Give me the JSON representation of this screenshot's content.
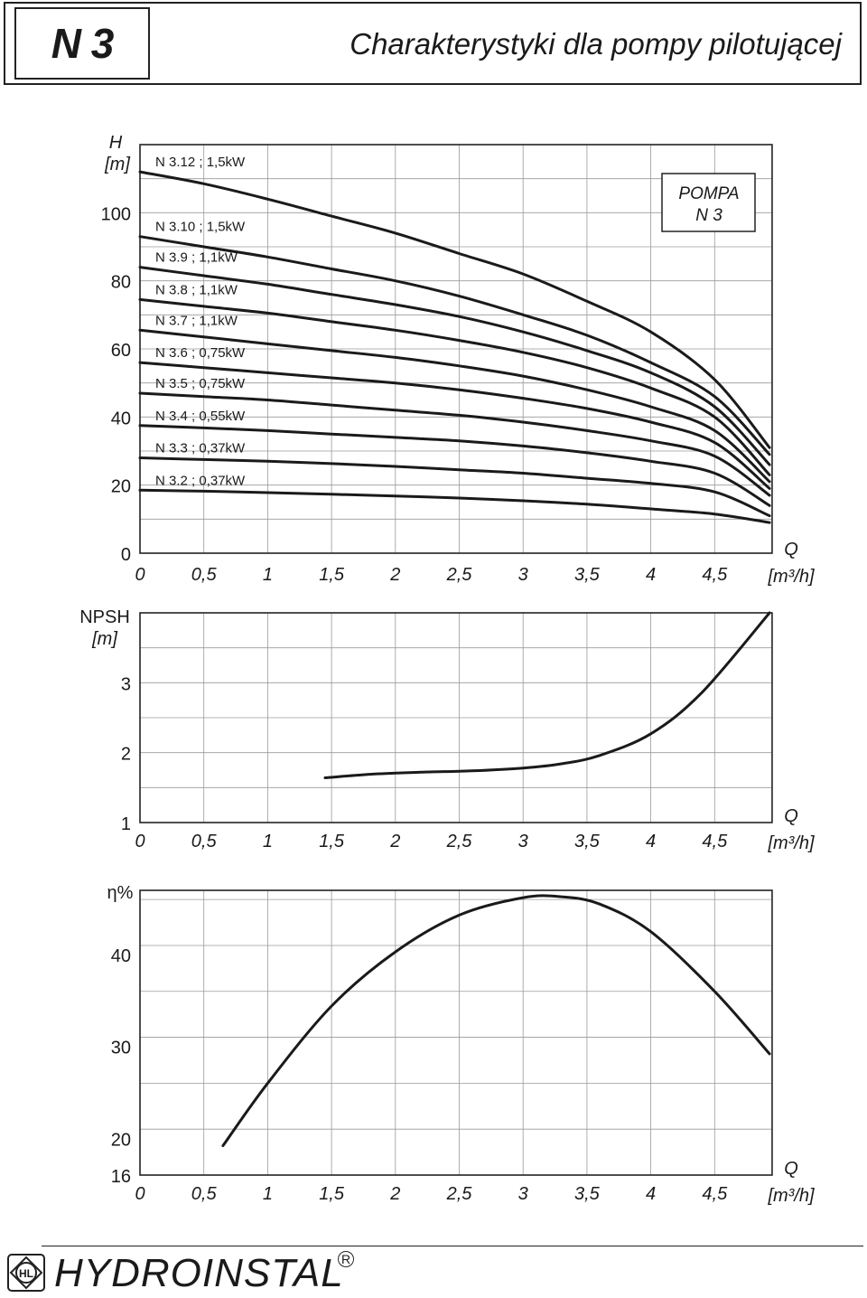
{
  "header": {
    "code": "N 3",
    "title": "Charakterystyki dla pompy pilotującej"
  },
  "x_axis": {
    "ticks": [
      "0",
      "0,5",
      "1",
      "1,5",
      "2",
      "2,5",
      "3",
      "3,5",
      "4",
      "4,5"
    ],
    "label_q": "Q",
    "label_unit": "[m³/h]"
  },
  "chart_data": [
    {
      "type": "line",
      "name": "head-curves",
      "ylabel": "H",
      "yunit": "[m]",
      "xlim": [
        0,
        4.95
      ],
      "ylim": [
        0,
        120
      ],
      "yticks": [
        "0",
        "20",
        "40",
        "60",
        "80",
        "100"
      ],
      "legend_box": [
        "POMPA",
        "N 3"
      ],
      "series": [
        {
          "name": "N 3.12 ; 1,5kW",
          "points": [
            [
              0,
              112
            ],
            [
              0.5,
              108.5
            ],
            [
              1,
              104
            ],
            [
              1.5,
              99
            ],
            [
              2,
              94
            ],
            [
              2.5,
              88
            ],
            [
              3,
              82
            ],
            [
              3.5,
              74
            ],
            [
              4,
              65
            ],
            [
              4.5,
              51
            ],
            [
              4.93,
              31
            ]
          ]
        },
        {
          "name": "N 3.10 ; 1,5kW",
          "points": [
            [
              0,
              93
            ],
            [
              0.5,
              90
            ],
            [
              1,
              87
            ],
            [
              1.5,
              83.5
            ],
            [
              2,
              80
            ],
            [
              2.5,
              75.5
            ],
            [
              3,
              70
            ],
            [
              3.5,
              64
            ],
            [
              4,
              56
            ],
            [
              4.5,
              46
            ],
            [
              4.93,
              29
            ]
          ]
        },
        {
          "name": "N 3.9 ; 1,1kW",
          "points": [
            [
              0,
              84
            ],
            [
              0.5,
              81.5
            ],
            [
              1,
              79
            ],
            [
              1.5,
              76
            ],
            [
              2,
              73
            ],
            [
              2.5,
              69.5
            ],
            [
              3,
              65
            ],
            [
              3.5,
              59.5
            ],
            [
              4,
              53
            ],
            [
              4.5,
              43
            ],
            [
              4.93,
              26
            ]
          ]
        },
        {
          "name": "N 3.8 ; 1,1kW",
          "points": [
            [
              0,
              74.5
            ],
            [
              0.5,
              72.5
            ],
            [
              1,
              70.5
            ],
            [
              1.5,
              68
            ],
            [
              2,
              65.5
            ],
            [
              2.5,
              62.5
            ],
            [
              3,
              59
            ],
            [
              3.5,
              54.5
            ],
            [
              4,
              48.5
            ],
            [
              4.5,
              40
            ],
            [
              4.93,
              23
            ]
          ]
        },
        {
          "name": "N 3.7 ; 1,1kW",
          "points": [
            [
              0,
              65.5
            ],
            [
              0.5,
              63.5
            ],
            [
              1,
              61.5
            ],
            [
              1.5,
              59.5
            ],
            [
              2,
              57.5
            ],
            [
              2.5,
              55
            ],
            [
              3,
              52
            ],
            [
              3.5,
              48
            ],
            [
              4,
              43
            ],
            [
              4.5,
              36
            ],
            [
              4.93,
              21
            ]
          ]
        },
        {
          "name": "N 3.6 ; 0,75kW",
          "points": [
            [
              0,
              56
            ],
            [
              0.5,
              54.5
            ],
            [
              1,
              53
            ],
            [
              1.5,
              51.5
            ],
            [
              2,
              50
            ],
            [
              2.5,
              48
            ],
            [
              3,
              45.5
            ],
            [
              3.5,
              42.5
            ],
            [
              4,
              38.5
            ],
            [
              4.5,
              32.5
            ],
            [
              4.93,
              19
            ]
          ]
        },
        {
          "name": "N 3.5 ; 0,75kW",
          "points": [
            [
              0,
              47
            ],
            [
              0.5,
              46
            ],
            [
              1,
              45
            ],
            [
              1.5,
              43.5
            ],
            [
              2,
              42
            ],
            [
              2.5,
              40.5
            ],
            [
              3,
              38.5
            ],
            [
              3.5,
              36
            ],
            [
              4,
              33
            ],
            [
              4.5,
              28.5
            ],
            [
              4.93,
              17
            ]
          ]
        },
        {
          "name": "N 3.4 ; 0,55kW",
          "points": [
            [
              0,
              37.5
            ],
            [
              0.5,
              36.8
            ],
            [
              1,
              36
            ],
            [
              1.5,
              35
            ],
            [
              2,
              34
            ],
            [
              2.5,
              33
            ],
            [
              3,
              31.5
            ],
            [
              3.5,
              29.5
            ],
            [
              4,
              27
            ],
            [
              4.5,
              23.5
            ],
            [
              4.93,
              14
            ]
          ]
        },
        {
          "name": "N 3.3 ; 0,37kW",
          "points": [
            [
              0,
              28
            ],
            [
              0.5,
              27.5
            ],
            [
              1,
              27
            ],
            [
              1.5,
              26.3
            ],
            [
              2,
              25.5
            ],
            [
              2.5,
              24.5
            ],
            [
              3,
              23.5
            ],
            [
              3.5,
              22
            ],
            [
              4,
              20.5
            ],
            [
              4.5,
              18
            ],
            [
              4.93,
              11
            ]
          ]
        },
        {
          "name": "N 3.2 ; 0,37kW",
          "points": [
            [
              0,
              18.5
            ],
            [
              0.5,
              18.2
            ],
            [
              1,
              17.8
            ],
            [
              1.5,
              17.3
            ],
            [
              2,
              16.8
            ],
            [
              2.5,
              16.2
            ],
            [
              3,
              15.4
            ],
            [
              3.5,
              14.4
            ],
            [
              4,
              13
            ],
            [
              4.5,
              11.5
            ],
            [
              4.93,
              9
            ]
          ]
        }
      ]
    },
    {
      "type": "line",
      "name": "npsh-curve",
      "ylabel": "NPSH",
      "yunit": "[m]",
      "xlim": [
        0,
        4.95
      ],
      "ylim": [
        1,
        4
      ],
      "yticks": [
        "1",
        "2",
        "3"
      ],
      "series": [
        {
          "name": "NPSH",
          "points": [
            [
              1.45,
              1.64
            ],
            [
              1.8,
              1.69
            ],
            [
              2.2,
              1.72
            ],
            [
              2.6,
              1.74
            ],
            [
              3,
              1.78
            ],
            [
              3.3,
              1.84
            ],
            [
              3.6,
              1.96
            ],
            [
              4,
              2.27
            ],
            [
              4.4,
              2.86
            ],
            [
              4.93,
              4.0
            ]
          ]
        }
      ]
    },
    {
      "type": "line",
      "name": "efficiency-curve",
      "ylabel": "η%",
      "yunit": "",
      "xlim": [
        0,
        4.95
      ],
      "ylim": [
        16,
        48
      ],
      "yticks": [
        "16",
        "20",
        "30",
        "40"
      ],
      "series": [
        {
          "name": "η",
          "points": [
            [
              0.65,
              19.2
            ],
            [
              1,
              26
            ],
            [
              1.5,
              34.4
            ],
            [
              2,
              40.3
            ],
            [
              2.5,
              44.3
            ],
            [
              3,
              46.2
            ],
            [
              3.3,
              46.3
            ],
            [
              3.6,
              45.5
            ],
            [
              4,
              42.5
            ],
            [
              4.5,
              36
            ],
            [
              4.93,
              29.2
            ]
          ]
        }
      ]
    }
  ],
  "footer": {
    "logo_text": "HL",
    "brand": "HYDROINSTAL",
    "reg_mark": "R"
  }
}
